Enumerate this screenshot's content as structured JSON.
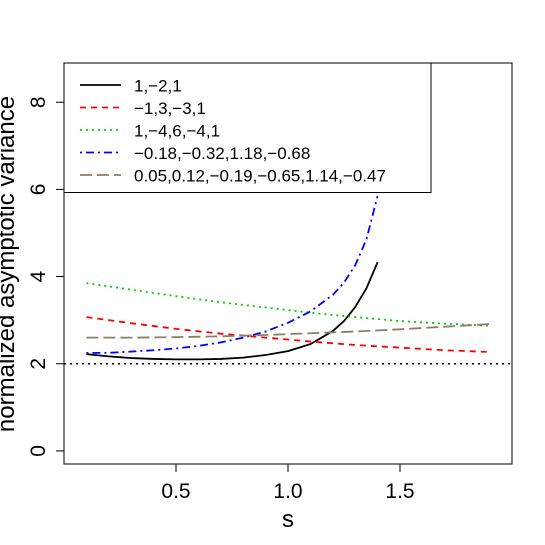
{
  "chart_data": {
    "type": "line",
    "title": "",
    "xlabel": "s",
    "ylabel": "normalized asymptotic variance",
    "xlim": [
      0.0,
      2.0
    ],
    "ylim": [
      -0.3,
      8.9
    ],
    "xticks": [
      "0.5",
      "1.0",
      "1.5"
    ],
    "yticks": [
      "0",
      "2",
      "4",
      "6",
      "8"
    ],
    "grid": false,
    "legend_position": "top-left",
    "reference_line": {
      "y": 2,
      "style": "dotted",
      "color": "#000000"
    },
    "series": [
      {
        "name": "1,−2,1",
        "color": "#000000",
        "style": "solid",
        "x": [
          0.1,
          0.2,
          0.3,
          0.4,
          0.5,
          0.6,
          0.7,
          0.8,
          0.9,
          1.0,
          1.1,
          1.2,
          1.25,
          1.3,
          1.35,
          1.4
        ],
        "y": [
          2.22,
          2.17,
          2.13,
          2.11,
          2.1,
          2.1,
          2.11,
          2.14,
          2.2,
          2.29,
          2.45,
          2.75,
          2.98,
          3.3,
          3.73,
          4.33
        ]
      },
      {
        "name": "−1,3,−3,1",
        "color": "#ff0000",
        "style": "dashed",
        "x": [
          0.1,
          0.3,
          0.5,
          0.7,
          0.9,
          1.1,
          1.3,
          1.5,
          1.7,
          1.9
        ],
        "y": [
          3.07,
          2.93,
          2.8,
          2.69,
          2.6,
          2.51,
          2.43,
          2.37,
          2.31,
          2.27
        ]
      },
      {
        "name": "1,−4,6,−4,1",
        "color": "#00cc00",
        "style": "dotted",
        "x": [
          0.1,
          0.3,
          0.5,
          0.7,
          0.9,
          1.1,
          1.3,
          1.5,
          1.7,
          1.9
        ],
        "y": [
          3.85,
          3.7,
          3.55,
          3.41,
          3.29,
          3.17,
          3.07,
          2.98,
          2.92,
          2.87
        ]
      },
      {
        "name": "−0.18,−0.32,1.18,−0.68",
        "color": "#0000ff",
        "style": "dotdash",
        "x": [
          0.1,
          0.2,
          0.3,
          0.4,
          0.5,
          0.6,
          0.7,
          0.8,
          0.9,
          1.0,
          1.1,
          1.2,
          1.25,
          1.3,
          1.35,
          1.4
        ],
        "y": [
          2.25,
          2.25,
          2.28,
          2.31,
          2.35,
          2.41,
          2.49,
          2.6,
          2.74,
          2.94,
          3.2,
          3.58,
          3.86,
          4.26,
          4.85,
          5.85
        ]
      },
      {
        "name": "0.05,0.12,−0.19,−0.65,1.14,−0.47",
        "color": "#8b7d6b",
        "style": "longdash",
        "x": [
          0.1,
          0.3,
          0.5,
          0.7,
          0.9,
          1.1,
          1.3,
          1.5,
          1.7,
          1.9
        ],
        "y": [
          2.6,
          2.6,
          2.61,
          2.63,
          2.66,
          2.7,
          2.74,
          2.79,
          2.85,
          2.91
        ]
      }
    ]
  }
}
